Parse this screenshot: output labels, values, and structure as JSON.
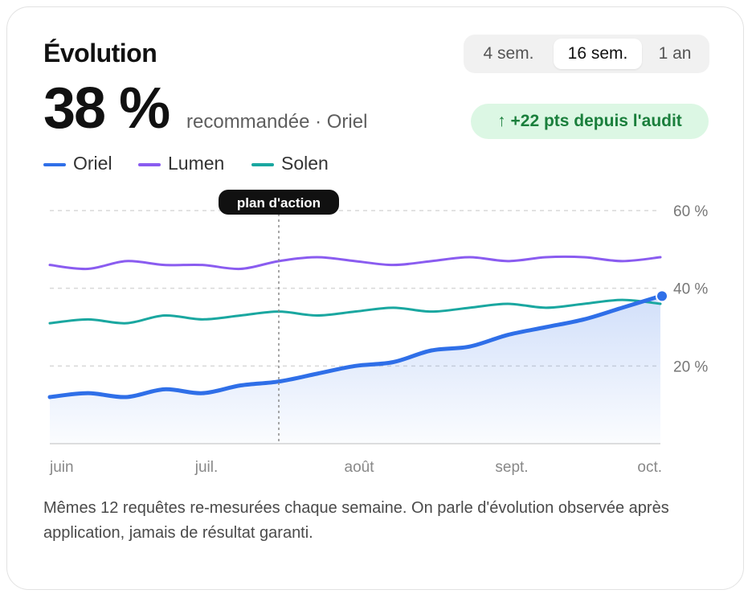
{
  "card": {
    "title": "Évolution",
    "big_value": "38 %",
    "subtitle": "recommandée · Oriel",
    "badge": "↑ +22 pts depuis l'audit",
    "caption": "Mêmes 12 requêtes re-mesurées chaque semaine. On parle d'évolution observée après application, jamais de résultat garanti."
  },
  "range_tabs": [
    {
      "label": "4 sem.",
      "active": false
    },
    {
      "label": "16 sem.",
      "active": true
    },
    {
      "label": "1 an",
      "active": false
    }
  ],
  "colors": {
    "oriel": "#2f6fe8",
    "lumen": "#8a5cf0",
    "solen": "#1aa7a0",
    "badge_bg": "#dcf7e4",
    "badge_text": "#1a7f3c"
  },
  "chart_data": {
    "type": "line",
    "x": [
      0,
      1,
      2,
      3,
      4,
      5,
      6,
      7,
      8,
      9,
      10,
      11,
      12,
      13,
      14,
      15,
      16
    ],
    "x_tick_labels": [
      {
        "x": 0,
        "label": "juin"
      },
      {
        "x": 4,
        "label": "juil."
      },
      {
        "x": 8,
        "label": "août"
      },
      {
        "x": 12,
        "label": "sept."
      },
      {
        "x": 16,
        "label": "oct."
      }
    ],
    "ylim": [
      0,
      60
    ],
    "y_ticks": [
      {
        "value": 20,
        "label": "20 %"
      },
      {
        "value": 40,
        "label": "40 %"
      },
      {
        "value": 60,
        "label": "60 %"
      }
    ],
    "grid": true,
    "legend_position": "top-left",
    "annotation": {
      "x": 6,
      "label": "plan d'action"
    },
    "series": [
      {
        "name": "Oriel",
        "key": "oriel",
        "area": true,
        "end_marker": true,
        "values": [
          12,
          13,
          12,
          14,
          13,
          15,
          16,
          18,
          20,
          21,
          24,
          25,
          28,
          30,
          32,
          35,
          38
        ]
      },
      {
        "name": "Lumen",
        "key": "lumen",
        "area": false,
        "end_marker": false,
        "values": [
          46,
          45,
          47,
          46,
          46,
          45,
          47,
          48,
          47,
          46,
          47,
          48,
          47,
          48,
          48,
          47,
          48
        ]
      },
      {
        "name": "Solen",
        "key": "solen",
        "area": false,
        "end_marker": false,
        "values": [
          31,
          32,
          31,
          33,
          32,
          33,
          34,
          33,
          34,
          35,
          34,
          35,
          36,
          35,
          36,
          37,
          36
        ]
      }
    ]
  }
}
